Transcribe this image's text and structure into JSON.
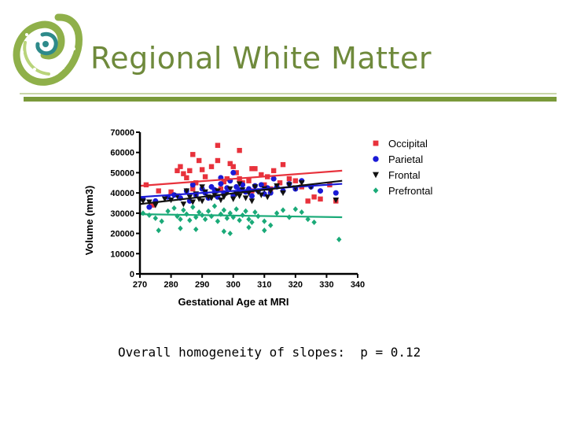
{
  "slide": {
    "title": "Regional White Matter",
    "footnote": "Overall homogeneity of slopes:  p = 0.12"
  },
  "colors": {
    "title": "#6f8a3c",
    "rule": "#7a9a3a",
    "occipital": "#e8323c",
    "parietal": "#1a1ad6",
    "frontal": "#111111",
    "prefrontal": "#1aaa78"
  },
  "chart_data": {
    "type": "scatter",
    "xlabel": "Gestational Age at MRI",
    "ylabel": "Volume (mm3)",
    "xlim": [
      270,
      340
    ],
    "ylim": [
      0,
      70000
    ],
    "x_ticks": [
      "270",
      "280",
      "290",
      "300",
      "310",
      "320",
      "330",
      "340"
    ],
    "y_ticks": [
      "0",
      "10000",
      "20000",
      "30000",
      "40000",
      "50000",
      "60000",
      "70000"
    ],
    "legend_position": "right",
    "series": [
      {
        "name": "Occipital",
        "marker": "square",
        "color": "#e8323c",
        "fit": [
          [
            270,
            43500
          ],
          [
            335,
            51000
          ]
        ],
        "points": [
          [
            272,
            44000
          ],
          [
            274,
            34000
          ],
          [
            276,
            41000
          ],
          [
            280,
            40500
          ],
          [
            282,
            51000
          ],
          [
            283,
            53000
          ],
          [
            284,
            49500
          ],
          [
            285,
            47500
          ],
          [
            286,
            51000
          ],
          [
            287,
            42000
          ],
          [
            288,
            45000
          ],
          [
            290,
            51500
          ],
          [
            291,
            48000
          ],
          [
            293,
            53000
          ],
          [
            295,
            56000
          ],
          [
            296,
            42000
          ],
          [
            297,
            45500
          ],
          [
            298,
            47000
          ],
          [
            299,
            54500
          ],
          [
            300,
            53000
          ],
          [
            301,
            50000
          ],
          [
            302,
            47000
          ],
          [
            303,
            45000
          ],
          [
            305,
            46000
          ],
          [
            306,
            41000
          ],
          [
            307,
            52000
          ],
          [
            309,
            49000
          ],
          [
            310,
            44000
          ],
          [
            311,
            48000
          ],
          [
            312,
            42000
          ],
          [
            313,
            51000
          ],
          [
            315,
            45000
          ],
          [
            316,
            54000
          ],
          [
            318,
            47000
          ],
          [
            320,
            46000
          ],
          [
            322,
            43000
          ],
          [
            324,
            36000
          ],
          [
            326,
            38000
          ],
          [
            328,
            37000
          ],
          [
            331,
            44000
          ],
          [
            333,
            36000
          ],
          [
            295,
            63500
          ],
          [
            287,
            59000
          ],
          [
            302,
            61000
          ],
          [
            306,
            52000
          ],
          [
            289,
            56000
          ]
        ]
      },
      {
        "name": "Parietal",
        "marker": "circle",
        "color": "#1a1ad6",
        "fit": [
          [
            270,
            38000
          ],
          [
            335,
            44500
          ]
        ],
        "points": [
          [
            271,
            37000
          ],
          [
            273,
            33000
          ],
          [
            275,
            36000
          ],
          [
            279,
            38000
          ],
          [
            281,
            39000
          ],
          [
            283,
            37500
          ],
          [
            285,
            41000
          ],
          [
            286,
            36000
          ],
          [
            287,
            44000
          ],
          [
            288,
            39000
          ],
          [
            290,
            42000
          ],
          [
            291,
            40000
          ],
          [
            292,
            37500
          ],
          [
            293,
            43000
          ],
          [
            294,
            41500
          ],
          [
            295,
            38000
          ],
          [
            296,
            44500
          ],
          [
            297,
            40000
          ],
          [
            298,
            42500
          ],
          [
            299,
            46000
          ],
          [
            300,
            39000
          ],
          [
            301,
            43000
          ],
          [
            302,
            41500
          ],
          [
            303,
            44000
          ],
          [
            304,
            40500
          ],
          [
            305,
            42000
          ],
          [
            306,
            38500
          ],
          [
            307,
            43500
          ],
          [
            308,
            41000
          ],
          [
            309,
            44000
          ],
          [
            310,
            39500
          ],
          [
            311,
            42500
          ],
          [
            312,
            40000
          ],
          [
            314,
            43000
          ],
          [
            316,
            41000
          ],
          [
            318,
            44500
          ],
          [
            320,
            42000
          ],
          [
            322,
            46000
          ],
          [
            325,
            43000
          ],
          [
            328,
            41000
          ],
          [
            333,
            40000
          ],
          [
            300,
            50000
          ],
          [
            313,
            47000
          ],
          [
            296,
            47500
          ]
        ]
      },
      {
        "name": "Frontal",
        "marker": "triangle-down",
        "color": "#111111",
        "fit": [
          [
            270,
            34500
          ],
          [
            335,
            46000
          ]
        ],
        "points": [
          [
            271,
            36000
          ],
          [
            273,
            35500
          ],
          [
            275,
            34000
          ],
          [
            278,
            37000
          ],
          [
            280,
            36500
          ],
          [
            282,
            38500
          ],
          [
            284,
            34500
          ],
          [
            285,
            41000
          ],
          [
            286,
            38000
          ],
          [
            287,
            35500
          ],
          [
            288,
            39500
          ],
          [
            289,
            37000
          ],
          [
            290,
            36000
          ],
          [
            291,
            40500
          ],
          [
            292,
            38000
          ],
          [
            293,
            37500
          ],
          [
            294,
            39000
          ],
          [
            295,
            41000
          ],
          [
            296,
            36500
          ],
          [
            297,
            38000
          ],
          [
            298,
            40000
          ],
          [
            299,
            42000
          ],
          [
            300,
            37000
          ],
          [
            301,
            39500
          ],
          [
            302,
            38500
          ],
          [
            303,
            41500
          ],
          [
            304,
            37500
          ],
          [
            305,
            40000
          ],
          [
            306,
            36000
          ],
          [
            307,
            43000
          ],
          [
            308,
            40500
          ],
          [
            309,
            39000
          ],
          [
            310,
            42000
          ],
          [
            311,
            38000
          ],
          [
            312,
            41000
          ],
          [
            314,
            43500
          ],
          [
            316,
            40000
          ],
          [
            318,
            44000
          ],
          [
            320,
            42500
          ],
          [
            322,
            45000
          ],
          [
            325,
            43000
          ],
          [
            333,
            36500
          ],
          [
            290,
            43000
          ],
          [
            302,
            44500
          ]
        ]
      },
      {
        "name": "Prefrontal",
        "marker": "diamond",
        "color": "#1aaa78",
        "fit": [
          [
            270,
            29500
          ],
          [
            335,
            28000
          ]
        ],
        "points": [
          [
            271,
            30000
          ],
          [
            273,
            29000
          ],
          [
            275,
            27500
          ],
          [
            277,
            26000
          ],
          [
            279,
            31000
          ],
          [
            281,
            32500
          ],
          [
            282,
            28500
          ],
          [
            283,
            27000
          ],
          [
            284,
            31500
          ],
          [
            285,
            29500
          ],
          [
            286,
            26500
          ],
          [
            287,
            33000
          ],
          [
            288,
            28000
          ],
          [
            289,
            30500
          ],
          [
            290,
            29000
          ],
          [
            291,
            27000
          ],
          [
            292,
            31000
          ],
          [
            293,
            28500
          ],
          [
            294,
            33500
          ],
          [
            295,
            26000
          ],
          [
            296,
            29500
          ],
          [
            297,
            31500
          ],
          [
            298,
            27500
          ],
          [
            299,
            30000
          ],
          [
            300,
            28000
          ],
          [
            301,
            32000
          ],
          [
            302,
            26500
          ],
          [
            303,
            29000
          ],
          [
            304,
            31000
          ],
          [
            305,
            27000
          ],
          [
            306,
            25500
          ],
          [
            307,
            30500
          ],
          [
            308,
            28500
          ],
          [
            310,
            26000
          ],
          [
            312,
            24000
          ],
          [
            314,
            30000
          ],
          [
            316,
            31500
          ],
          [
            318,
            28000
          ],
          [
            320,
            32000
          ],
          [
            322,
            30500
          ],
          [
            324,
            27000
          ],
          [
            326,
            25500
          ],
          [
            276,
            21500
          ],
          [
            283,
            22500
          ],
          [
            288,
            22000
          ],
          [
            297,
            21000
          ],
          [
            305,
            23000
          ],
          [
            310,
            21500
          ],
          [
            299,
            20000
          ],
          [
            334,
            17000
          ]
        ]
      }
    ]
  }
}
